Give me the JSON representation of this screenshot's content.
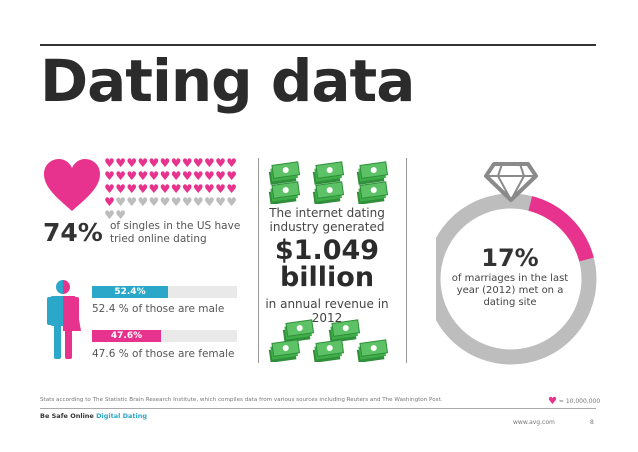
{
  "title": "Dating data",
  "singles": {
    "percent": "74%",
    "text": "of singles in the US have tried online dating",
    "filled_hearts": 37,
    "total_hearts": 50
  },
  "gender": {
    "male": {
      "bar_label": "52.4%",
      "fraction": 0.524,
      "text": "52.4 % of those are male"
    },
    "female": {
      "bar_label": "47.6%",
      "fraction": 0.476,
      "text": "47.6 % of those are female"
    }
  },
  "revenue": {
    "intro": "The internet dating industry generated",
    "amount_line1": "$1.049",
    "amount_line2": "billion",
    "sub": "in annual revenue in 2012"
  },
  "marriages": {
    "percent": "17%",
    "text": "of marriages in the last year (2012) met on a dating site",
    "fraction": 0.17
  },
  "footer": {
    "footnote": "Stats according to The Statistic Brain Research Institute, which compiles data from various sources including Reuters and The Washington Post.",
    "legend": "= 10,000,000",
    "brand": "Be Safe Online",
    "brand_tag": "Digital Dating",
    "url": "www.avg.com",
    "page": "8"
  },
  "colors": {
    "pink": "#e8338e",
    "blue": "#2aa7c9",
    "grey": "#bdbdbd",
    "money_green": "#3fae49"
  },
  "icons": [
    "heart-icon",
    "gender-icon",
    "money-icon",
    "diamond-ring-icon"
  ]
}
